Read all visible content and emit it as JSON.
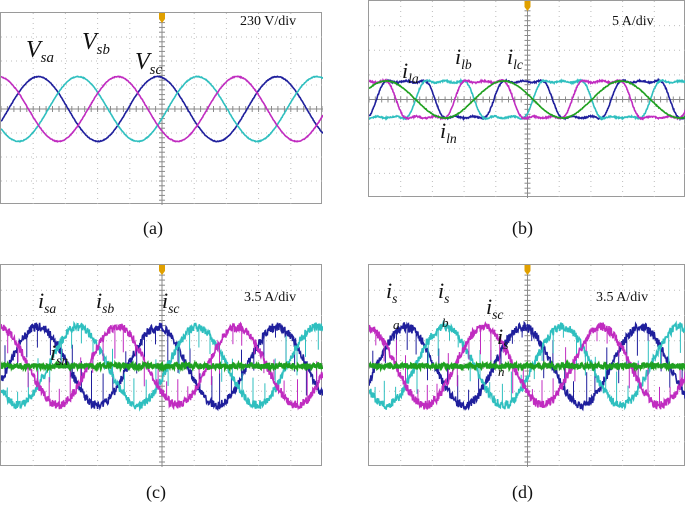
{
  "panels": [
    {
      "id": "a",
      "caption": "(a)",
      "scale": "230 V/div",
      "labels": [
        {
          "base": "V",
          "sub": "sa"
        },
        {
          "base": "V",
          "sub": "sb"
        },
        {
          "base": "V",
          "sub": "sc"
        }
      ]
    },
    {
      "id": "b",
      "caption": "(b)",
      "scale": "5 A/div",
      "labels": [
        {
          "base": "i",
          "sub": "la"
        },
        {
          "base": "i",
          "sub": "lb"
        },
        {
          "base": "i",
          "sub": "lc"
        },
        {
          "base": "i",
          "sub": "ln"
        }
      ]
    },
    {
      "id": "c",
      "caption": "(c)",
      "scale": "3.5 A/div",
      "labels": [
        {
          "base": "i",
          "sub": "sa"
        },
        {
          "base": "i",
          "sub": "sb"
        },
        {
          "base": "i",
          "sub": "sc"
        },
        {
          "base": "i",
          "sub": "sn"
        }
      ]
    },
    {
      "id": "d",
      "caption": "(d)",
      "scale": "3.5 A/div",
      "labels": [
        {
          "base": "i",
          "sub": "s",
          "sub2": "a"
        },
        {
          "base": "i",
          "sub": "s",
          "sub2": "b"
        },
        {
          "base": "i",
          "sub": "sc"
        },
        {
          "base": "i",
          "sub": "s",
          "sub2": "n"
        }
      ]
    }
  ],
  "colors": {
    "phase_a": "#1f1f9c",
    "phase_b": "#2fbfbf",
    "phase_c": "#c02cc0",
    "neutral": "#1fa01f",
    "grid": "#bdbdbd",
    "trigger": "#e0a000"
  },
  "chart_data": [
    {
      "type": "line",
      "panel": "a",
      "x_divisions": 10,
      "y_divisions": 8,
      "cycles_shown": 2.7,
      "series": [
        {
          "name": "Vsa",
          "amplitude_div": 1.35,
          "phase_deg": 0
        },
        {
          "name": "Vsb",
          "amplitude_div": 1.35,
          "phase_deg": -120
        },
        {
          "name": "Vsc",
          "amplitude_div": 1.35,
          "phase_deg": 120
        }
      ]
    },
    {
      "type": "line",
      "panel": "b",
      "x_divisions": 10,
      "y_divisions": 8,
      "cycles_shown": 2.7,
      "series": [
        {
          "name": "ila",
          "amplitude_div": 0.9,
          "phase_deg": 0,
          "shape": "nonlinear"
        },
        {
          "name": "ilb",
          "amplitude_div": 0.9,
          "phase_deg": -120,
          "shape": "nonlinear"
        },
        {
          "name": "ilc",
          "amplitude_div": 0.9,
          "phase_deg": 120,
          "shape": "nonlinear"
        },
        {
          "name": "iln",
          "amplitude_div": 0.75,
          "phase_deg": 60,
          "shape": "sine"
        }
      ]
    },
    {
      "type": "line",
      "panel": "c",
      "x_divisions": 10,
      "y_divisions": 8,
      "cycles_shown": 2.7,
      "series": [
        {
          "name": "isa",
          "amplitude_div": 1.55,
          "phase_deg": 0,
          "shape": "switching"
        },
        {
          "name": "isb",
          "amplitude_div": 1.55,
          "phase_deg": -120,
          "shape": "switching"
        },
        {
          "name": "isc",
          "amplitude_div": 1.55,
          "phase_deg": 120,
          "shape": "switching"
        },
        {
          "name": "isn",
          "amplitude_div": 0.0,
          "phase_deg": 0,
          "shape": "noise"
        }
      ]
    },
    {
      "type": "line",
      "panel": "d",
      "x_divisions": 10,
      "y_divisions": 8,
      "cycles_shown": 2.7,
      "series": [
        {
          "name": "isa",
          "amplitude_div": 1.55,
          "phase_deg": 0,
          "shape": "switching"
        },
        {
          "name": "isb",
          "amplitude_div": 1.55,
          "phase_deg": -120,
          "shape": "switching"
        },
        {
          "name": "isc",
          "amplitude_div": 1.55,
          "phase_deg": 120,
          "shape": "switching"
        },
        {
          "name": "isn",
          "amplitude_div": 0.0,
          "phase_deg": 0,
          "shape": "noise"
        }
      ]
    }
  ]
}
